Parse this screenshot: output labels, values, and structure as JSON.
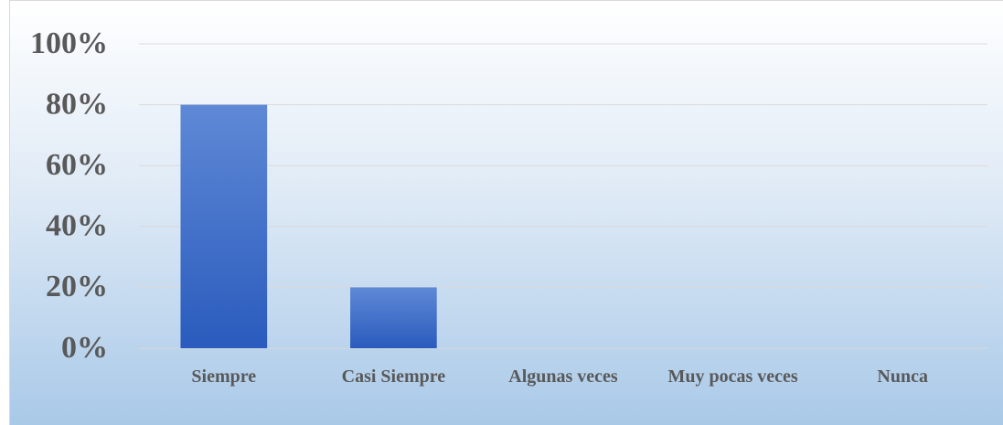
{
  "chart_data": {
    "type": "bar",
    "categories": [
      "Siempre",
      "Casi Siempre",
      "Algunas veces",
      "Muy pocas veces",
      "Nunca"
    ],
    "values": [
      80,
      20,
      0,
      0,
      0
    ],
    "color": "#3a6bc9",
    "ylim": [
      0,
      100
    ],
    "yticks": [
      {
        "value": 0,
        "label": "0%"
      },
      {
        "value": 20,
        "label": "20%"
      },
      {
        "value": 40,
        "label": "40%"
      },
      {
        "value": 60,
        "label": "60%"
      },
      {
        "value": 80,
        "label": "80%"
      },
      {
        "value": 100,
        "label": "100%"
      }
    ],
    "grid": true
  }
}
